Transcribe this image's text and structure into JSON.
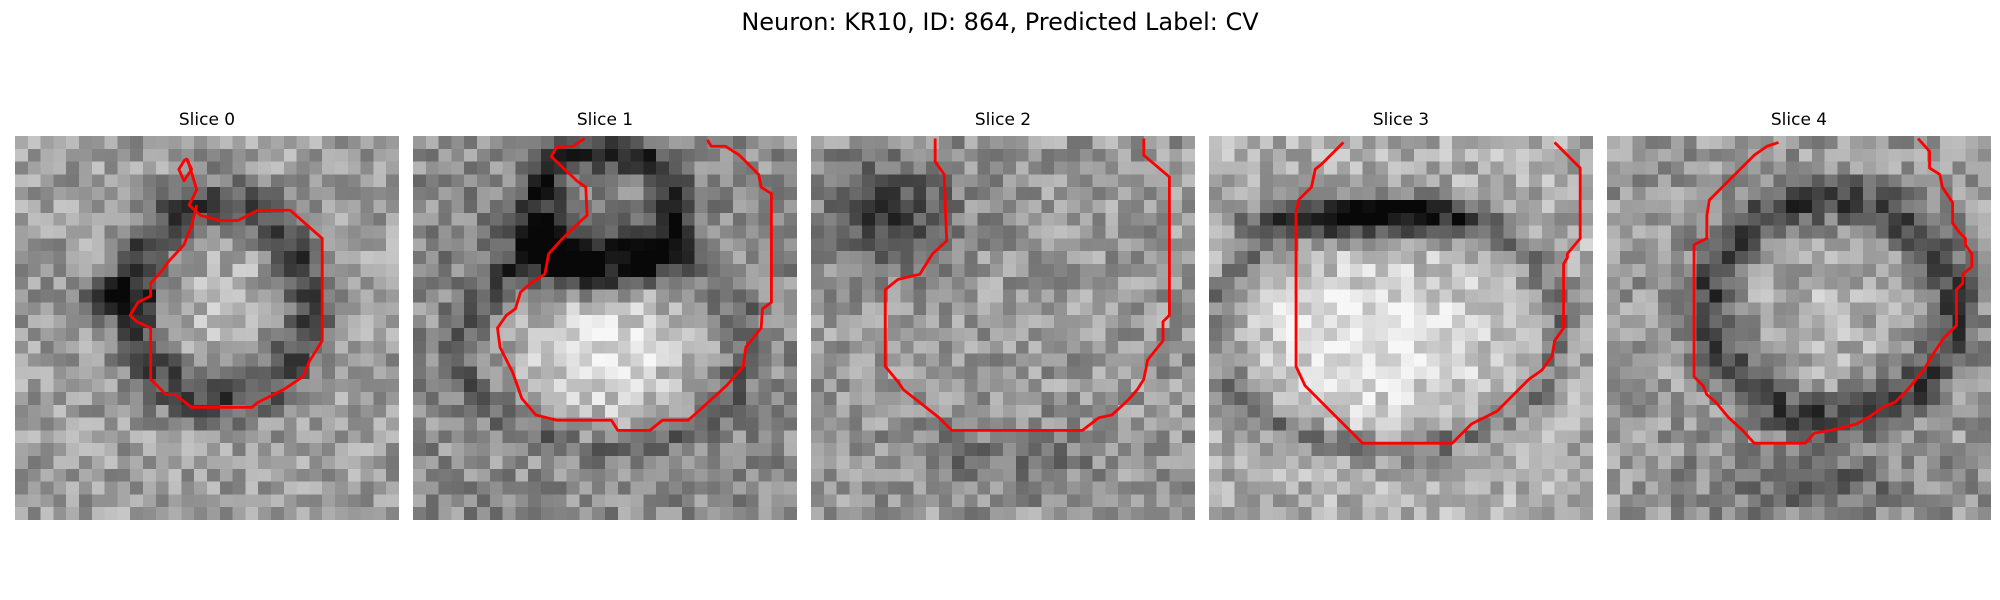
{
  "figure": {
    "title": "Neuron: KR10, ID: 864, Predicted Label: CV"
  },
  "colors": {
    "contour": "#ff0000",
    "background": "#ffffff"
  },
  "grid_size": 30,
  "slices": [
    {
      "title": "Slice 0",
      "contour": [
        [
          13.3,
          1.8
        ],
        [
          12.8,
          2.6
        ],
        [
          13.2,
          3.5
        ],
        [
          13.8,
          2.6
        ],
        [
          13.4,
          1.8
        ],
        [
          13.5,
          1.9
        ],
        [
          14.2,
          4.2
        ],
        [
          13.6,
          5.4
        ],
        [
          14.5,
          6.2
        ],
        [
          16,
          6.6
        ],
        [
          17.4,
          6.6
        ],
        [
          19,
          5.8
        ],
        [
          21.5,
          5.8
        ],
        [
          24,
          8
        ],
        [
          24,
          16
        ],
        [
          23,
          17.6
        ],
        [
          22.5,
          18.8
        ],
        [
          21,
          19.8
        ],
        [
          19,
          20.8
        ],
        [
          18.5,
          21.2
        ],
        [
          13.8,
          21.2
        ],
        [
          12.5,
          20.2
        ],
        [
          11.8,
          20.2
        ],
        [
          10.6,
          19
        ],
        [
          10.6,
          15
        ],
        [
          9.5,
          14.5
        ],
        [
          9,
          14
        ],
        [
          9.6,
          13
        ],
        [
          10.6,
          12.5
        ],
        [
          10.6,
          11.5
        ],
        [
          11.5,
          10.5
        ],
        [
          12,
          9.8
        ],
        [
          13.2,
          8.5
        ],
        [
          13.8,
          7
        ],
        [
          14.2,
          5.4
        ]
      ]
    },
    {
      "title": "Slice 1",
      "contour": [
        [
          13.4,
          0.2
        ],
        [
          12.5,
          0.8
        ],
        [
          11.2,
          0.9
        ],
        [
          10.8,
          1.6
        ],
        [
          12.8,
          3.5
        ],
        [
          13.5,
          4
        ],
        [
          13.6,
          6.2
        ],
        [
          12.5,
          7.2
        ],
        [
          11.5,
          8.2
        ],
        [
          10.6,
          9.2
        ],
        [
          10.3,
          10.8
        ],
        [
          9.2,
          11.5
        ],
        [
          8.4,
          12.2
        ],
        [
          8,
          13.5
        ],
        [
          7.3,
          14
        ],
        [
          6.6,
          15
        ],
        [
          6.8,
          16.5
        ],
        [
          7.8,
          18.5
        ],
        [
          8.5,
          20.5
        ],
        [
          9.6,
          21.8
        ],
        [
          11.2,
          22.2
        ],
        [
          15.5,
          22.2
        ],
        [
          16,
          23
        ],
        [
          18.5,
          23
        ],
        [
          19.5,
          22.2
        ],
        [
          21.5,
          22.2
        ],
        [
          22.3,
          21.5
        ],
        [
          24.5,
          19.5
        ],
        [
          25.8,
          18
        ],
        [
          26,
          16.5
        ],
        [
          27.2,
          15
        ],
        [
          27.3,
          13.5
        ],
        [
          28,
          13
        ],
        [
          28,
          4.5
        ],
        [
          27.2,
          4
        ],
        [
          27,
          3
        ],
        [
          25.5,
          1.5
        ],
        [
          24.4,
          0.8
        ],
        [
          23.3,
          0.8
        ],
        [
          23,
          0.3
        ]
      ]
    },
    {
      "title": "Slice 2",
      "contour": [
        [
          9.7,
          0.2
        ],
        [
          9.7,
          2
        ],
        [
          10.4,
          3
        ],
        [
          10.6,
          8.2
        ],
        [
          9.5,
          9.2
        ],
        [
          8.5,
          10.8
        ],
        [
          6.8,
          11.2
        ],
        [
          5.8,
          12
        ],
        [
          5.8,
          18
        ],
        [
          6.8,
          19.2
        ],
        [
          7.2,
          19.8
        ],
        [
          10,
          22
        ],
        [
          11,
          23
        ],
        [
          21.2,
          23
        ],
        [
          22.5,
          22
        ],
        [
          23.5,
          21.8
        ],
        [
          24.8,
          20.6
        ],
        [
          25.5,
          19.8
        ],
        [
          26,
          19
        ],
        [
          26.3,
          17.5
        ],
        [
          27.5,
          16
        ],
        [
          27.5,
          14.5
        ],
        [
          28,
          14
        ],
        [
          28,
          3.2
        ],
        [
          26,
          1.5
        ],
        [
          26,
          0.2
        ]
      ]
    },
    {
      "title": "Slice 3",
      "contour": [
        [
          10.5,
          0.5
        ],
        [
          9.2,
          1.8
        ],
        [
          8.8,
          2.2
        ],
        [
          8.3,
          2.6
        ],
        [
          8,
          4
        ],
        [
          7,
          5
        ],
        [
          6.8,
          6
        ],
        [
          6.8,
          18
        ],
        [
          7.5,
          19.5
        ],
        [
          7.8,
          19.8
        ],
        [
          9.5,
          21.5
        ],
        [
          11,
          23
        ],
        [
          12,
          24
        ],
        [
          19,
          24
        ],
        [
          19.8,
          23.2
        ],
        [
          20.5,
          22.5
        ],
        [
          22.5,
          21.5
        ],
        [
          24,
          20
        ],
        [
          25,
          19
        ],
        [
          26,
          18.3
        ],
        [
          26.8,
          17.2
        ],
        [
          27,
          16
        ],
        [
          27.7,
          15
        ],
        [
          27.7,
          10
        ],
        [
          28,
          9.5
        ],
        [
          28,
          9.2
        ],
        [
          29,
          8
        ],
        [
          29,
          2.5
        ],
        [
          27,
          0.5
        ]
      ]
    },
    {
      "title": "Slice 4",
      "contour": [
        [
          13.4,
          0.5
        ],
        [
          12.5,
          0.8
        ],
        [
          11.5,
          1.5
        ],
        [
          10.5,
          2.5
        ],
        [
          9.5,
          3.5
        ],
        [
          8.5,
          4.5
        ],
        [
          8,
          5
        ],
        [
          7.8,
          6.2
        ],
        [
          7.8,
          8
        ],
        [
          6.8,
          8.5
        ],
        [
          6.8,
          18.8
        ],
        [
          7.5,
          19.5
        ],
        [
          7.8,
          20.2
        ],
        [
          8.5,
          20.8
        ],
        [
          9.5,
          22
        ],
        [
          10.6,
          23
        ],
        [
          11.5,
          24
        ],
        [
          15.5,
          24
        ],
        [
          16.2,
          23.2
        ],
        [
          17.5,
          23
        ],
        [
          19.5,
          22.5
        ],
        [
          20.7,
          21.8
        ],
        [
          21.5,
          21.2
        ],
        [
          22.5,
          20.8
        ],
        [
          23.5,
          19.8
        ],
        [
          24.8,
          18.2
        ],
        [
          25.5,
          17
        ],
        [
          26.3,
          15.8
        ],
        [
          27.3,
          14.8
        ],
        [
          27.3,
          12
        ],
        [
          27.8,
          11.5
        ],
        [
          27.8,
          10.8
        ],
        [
          28.5,
          10.2
        ],
        [
          28.5,
          9.2
        ],
        [
          28,
          8.5
        ],
        [
          28,
          8
        ],
        [
          27.5,
          7.5
        ],
        [
          27,
          6.8
        ],
        [
          27,
          5.2
        ],
        [
          26.2,
          4
        ],
        [
          26,
          3
        ],
        [
          25.2,
          2.5
        ],
        [
          25.2,
          1.2
        ],
        [
          24.3,
          0.2
        ]
      ]
    }
  ]
}
